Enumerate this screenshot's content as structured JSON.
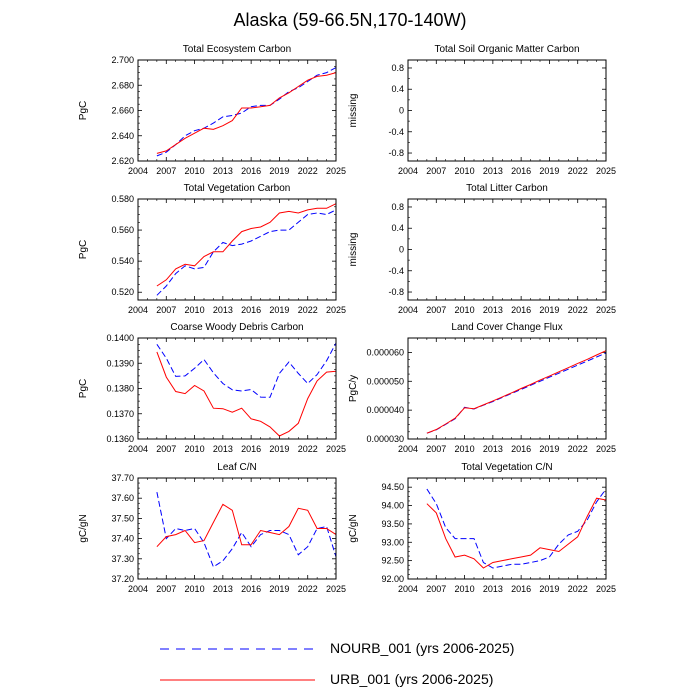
{
  "title": "Alaska (59-66.5N,170-140W)",
  "colors": {
    "NOURB_001": "#0000ff",
    "URB_001": "#ff0000"
  },
  "legend": [
    {
      "name": "NOURB_001 (yrs 2006-2025)",
      "style": "dashed",
      "color": "#0000ff"
    },
    {
      "name": "URB_001 (yrs 2006-2025)",
      "style": "solid",
      "color": "#ff0000"
    }
  ],
  "chart_data": [
    {
      "type": "line",
      "title": "Total Ecosystem Carbon",
      "ylabel": "PgC",
      "xlim": [
        2004,
        2025
      ],
      "ylim": [
        2.62,
        2.7
      ],
      "xticks": [
        2004,
        2007,
        2010,
        2013,
        2016,
        2019,
        2022,
        2025
      ],
      "yticks": [
        2.62,
        2.64,
        2.66,
        2.68,
        2.7
      ],
      "ytick_labels": [
        "2.620",
        "2.640",
        "2.660",
        "2.680",
        "2.700"
      ],
      "x": [
        2006,
        2007,
        2008,
        2009,
        2010,
        2011,
        2012,
        2013,
        2014,
        2015,
        2016,
        2017,
        2018,
        2019,
        2020,
        2021,
        2022,
        2023,
        2024,
        2025
      ],
      "series": [
        {
          "name": "NOURB_001",
          "style": "dashed",
          "values": [
            2.624,
            2.627,
            2.633,
            2.64,
            2.644,
            2.646,
            2.65,
            2.655,
            2.656,
            2.658,
            2.663,
            2.664,
            2.664,
            2.669,
            2.675,
            2.678,
            2.683,
            2.688,
            2.69,
            2.694
          ]
        },
        {
          "name": "URB_001",
          "style": "solid",
          "values": [
            2.626,
            2.628,
            2.633,
            2.638,
            2.642,
            2.646,
            2.645,
            2.648,
            2.652,
            2.662,
            2.662,
            2.663,
            2.664,
            2.67,
            2.674,
            2.679,
            2.684,
            2.687,
            2.688,
            2.69
          ]
        }
      ]
    },
    {
      "type": "line",
      "title": "Total Soil Organic Matter Carbon",
      "ylabel": "missing",
      "xlim": [
        2004,
        2025
      ],
      "ylim": [
        -0.95,
        0.95
      ],
      "xticks": [
        2004,
        2007,
        2010,
        2013,
        2016,
        2019,
        2022,
        2025
      ],
      "yticks": [
        -0.8,
        -0.4,
        0,
        0.4,
        0.8
      ],
      "ytick_labels": [
        "-0.8",
        "-0.4",
        "0",
        "0.4",
        "0.8"
      ],
      "minor_yticks": [
        -0.6,
        -0.2,
        0.2,
        0.6
      ],
      "x": [],
      "series": []
    },
    {
      "type": "line",
      "title": "Total Vegetation Carbon",
      "ylabel": "PgC",
      "xlim": [
        2004,
        2025
      ],
      "ylim": [
        0.515,
        0.58
      ],
      "xticks": [
        2004,
        2007,
        2010,
        2013,
        2016,
        2019,
        2022,
        2025
      ],
      "yticks": [
        0.52,
        0.54,
        0.56,
        0.58
      ],
      "ytick_labels": [
        "0.520",
        "0.540",
        "0.560",
        "0.580"
      ],
      "x": [
        2006,
        2007,
        2008,
        2009,
        2010,
        2011,
        2012,
        2013,
        2014,
        2015,
        2016,
        2017,
        2018,
        2019,
        2020,
        2021,
        2022,
        2023,
        2024,
        2025
      ],
      "series": [
        {
          "name": "NOURB_001",
          "style": "dashed",
          "values": [
            0.518,
            0.524,
            0.532,
            0.537,
            0.535,
            0.536,
            0.546,
            0.552,
            0.55,
            0.551,
            0.553,
            0.556,
            0.559,
            0.56,
            0.56,
            0.565,
            0.57,
            0.571,
            0.57,
            0.573
          ]
        },
        {
          "name": "URB_001",
          "style": "solid",
          "values": [
            0.524,
            0.528,
            0.535,
            0.538,
            0.537,
            0.543,
            0.546,
            0.546,
            0.553,
            0.559,
            0.561,
            0.562,
            0.565,
            0.571,
            0.572,
            0.571,
            0.573,
            0.574,
            0.574,
            0.577
          ]
        }
      ]
    },
    {
      "type": "line",
      "title": "Total Litter Carbon",
      "ylabel": "missing",
      "xlim": [
        2004,
        2025
      ],
      "ylim": [
        -0.95,
        0.95
      ],
      "xticks": [
        2004,
        2007,
        2010,
        2013,
        2016,
        2019,
        2022,
        2025
      ],
      "yticks": [
        -0.8,
        -0.4,
        0,
        0.4,
        0.8
      ],
      "ytick_labels": [
        "-0.8",
        "-0.4",
        "0",
        "0.4",
        "0.8"
      ],
      "minor_yticks": [
        -0.6,
        -0.2,
        0.2,
        0.6
      ],
      "x": [],
      "series": []
    },
    {
      "type": "line",
      "title": "Coarse Woody Debris Carbon",
      "ylabel": "PgC",
      "xlim": [
        2004,
        2025
      ],
      "ylim": [
        0.136,
        0.14
      ],
      "xticks": [
        2004,
        2007,
        2010,
        2013,
        2016,
        2019,
        2022,
        2025
      ],
      "yticks": [
        0.136,
        0.137,
        0.138,
        0.139,
        0.14
      ],
      "ytick_labels": [
        "0.1360",
        "0.1370",
        "0.1380",
        "0.1390",
        "0.1400"
      ],
      "x": [
        2006,
        2007,
        2008,
        2009,
        2010,
        2011,
        2012,
        2013,
        2014,
        2015,
        2016,
        2017,
        2018,
        2019,
        2020,
        2021,
        2022,
        2023,
        2024,
        2025
      ],
      "series": [
        {
          "name": "NOURB_001",
          "style": "dashed",
          "values": [
            0.13975,
            0.1392,
            0.13848,
            0.1385,
            0.1388,
            0.13915,
            0.13862,
            0.1382,
            0.13795,
            0.1379,
            0.13796,
            0.13766,
            0.13765,
            0.1386,
            0.13905,
            0.1386,
            0.1382,
            0.13855,
            0.1391,
            0.1398
          ]
        },
        {
          "name": "URB_001",
          "style": "solid",
          "values": [
            0.13945,
            0.13845,
            0.13788,
            0.1378,
            0.13812,
            0.1379,
            0.13722,
            0.1372,
            0.13706,
            0.13722,
            0.1368,
            0.1367,
            0.13648,
            0.13612,
            0.1363,
            0.13662,
            0.1376,
            0.1383,
            0.13865,
            0.13868
          ]
        }
      ]
    },
    {
      "type": "line",
      "title": "Land Cover Change Flux",
      "ylabel": "PgC/y",
      "xlim": [
        2004,
        2025
      ],
      "ylim": [
        3e-05,
        6.5e-05
      ],
      "xticks": [
        2004,
        2007,
        2010,
        2013,
        2016,
        2019,
        2022,
        2025
      ],
      "yticks": [
        3e-05,
        4e-05,
        5e-05,
        6e-05
      ],
      "ytick_labels": [
        "0.000030",
        "0.000040",
        "0.000050",
        "0.000060"
      ],
      "x": [
        2006,
        2007,
        2008,
        2009,
        2010,
        2011,
        2012,
        2013,
        2014,
        2015,
        2016,
        2017,
        2018,
        2019,
        2020,
        2021,
        2022,
        2023,
        2024,
        2025
      ],
      "series": [
        {
          "name": "NOURB_001",
          "style": "dashed",
          "values": [
            3.2e-05,
            3.32e-05,
            3.51e-05,
            3.7e-05,
            4.1e-05,
            4.04e-05,
            4.17e-05,
            4.3e-05,
            4.44e-05,
            4.58e-05,
            4.72e-05,
            4.86e-05,
            5e-05,
            5.14e-05,
            5.28e-05,
            5.42e-05,
            5.56e-05,
            5.7e-05,
            5.84e-05,
            5.98e-05
          ]
        },
        {
          "name": "URB_001",
          "style": "solid",
          "values": [
            3.2e-05,
            3.33e-05,
            3.52e-05,
            3.72e-05,
            4.08e-05,
            4.05e-05,
            4.18e-05,
            4.32e-05,
            4.46e-05,
            4.6e-05,
            4.75e-05,
            4.89e-05,
            5.04e-05,
            5.18e-05,
            5.33e-05,
            5.47e-05,
            5.62e-05,
            5.76e-05,
            5.91e-05,
            6.06e-05
          ]
        }
      ]
    },
    {
      "type": "line",
      "title": "Leaf C/N",
      "ylabel": "gC/gN",
      "xlim": [
        2004,
        2025
      ],
      "ylim": [
        37.2,
        37.7
      ],
      "xticks": [
        2004,
        2007,
        2010,
        2013,
        2016,
        2019,
        2022,
        2025
      ],
      "yticks": [
        37.2,
        37.3,
        37.4,
        37.5,
        37.6,
        37.7
      ],
      "ytick_labels": [
        "37.20",
        "37.30",
        "37.40",
        "37.50",
        "37.60",
        "37.70"
      ],
      "x": [
        2006,
        2007,
        2008,
        2009,
        2010,
        2011,
        2012,
        2013,
        2014,
        2015,
        2016,
        2017,
        2018,
        2019,
        2020,
        2021,
        2022,
        2023,
        2024,
        2025
      ],
      "series": [
        {
          "name": "NOURB_001",
          "style": "dashed",
          "values": [
            37.63,
            37.4,
            37.45,
            37.44,
            37.45,
            37.38,
            37.26,
            37.29,
            37.35,
            37.43,
            37.36,
            37.42,
            37.44,
            37.44,
            37.42,
            37.32,
            37.36,
            37.45,
            37.46,
            37.31
          ]
        },
        {
          "name": "URB_001",
          "style": "solid",
          "values": [
            37.36,
            37.41,
            37.42,
            37.44,
            37.38,
            37.39,
            37.48,
            37.57,
            37.54,
            37.37,
            37.37,
            37.44,
            37.43,
            37.42,
            37.46,
            37.55,
            37.54,
            37.45,
            37.45,
            37.42
          ]
        }
      ]
    },
    {
      "type": "line",
      "title": "Total Vegetation C/N",
      "ylabel": "gC/gN",
      "xlim": [
        2004,
        2025
      ],
      "ylim": [
        92.0,
        94.75
      ],
      "xticks": [
        2004,
        2007,
        2010,
        2013,
        2016,
        2019,
        2022,
        2025
      ],
      "yticks": [
        92.0,
        92.5,
        93.0,
        93.5,
        94.0,
        94.5
      ],
      "ytick_labels": [
        "92.00",
        "92.50",
        "93.00",
        "93.50",
        "94.00",
        "94.50"
      ],
      "x": [
        2006,
        2007,
        2008,
        2009,
        2010,
        2011,
        2012,
        2013,
        2014,
        2015,
        2016,
        2017,
        2018,
        2019,
        2020,
        2021,
        2022,
        2023,
        2024,
        2025
      ],
      "series": [
        {
          "name": "NOURB_001",
          "style": "dashed",
          "values": [
            94.45,
            94.05,
            93.4,
            93.1,
            93.1,
            93.1,
            92.45,
            92.3,
            92.35,
            92.4,
            92.4,
            92.45,
            92.5,
            92.6,
            92.95,
            93.2,
            93.3,
            93.6,
            94.1,
            94.45
          ]
        },
        {
          "name": "URB_001",
          "style": "solid",
          "values": [
            94.05,
            93.8,
            93.1,
            92.6,
            92.65,
            92.55,
            92.3,
            92.45,
            92.5,
            92.55,
            92.6,
            92.65,
            92.85,
            92.8,
            92.75,
            92.95,
            93.15,
            93.7,
            94.2,
            94.15
          ]
        }
      ]
    }
  ]
}
